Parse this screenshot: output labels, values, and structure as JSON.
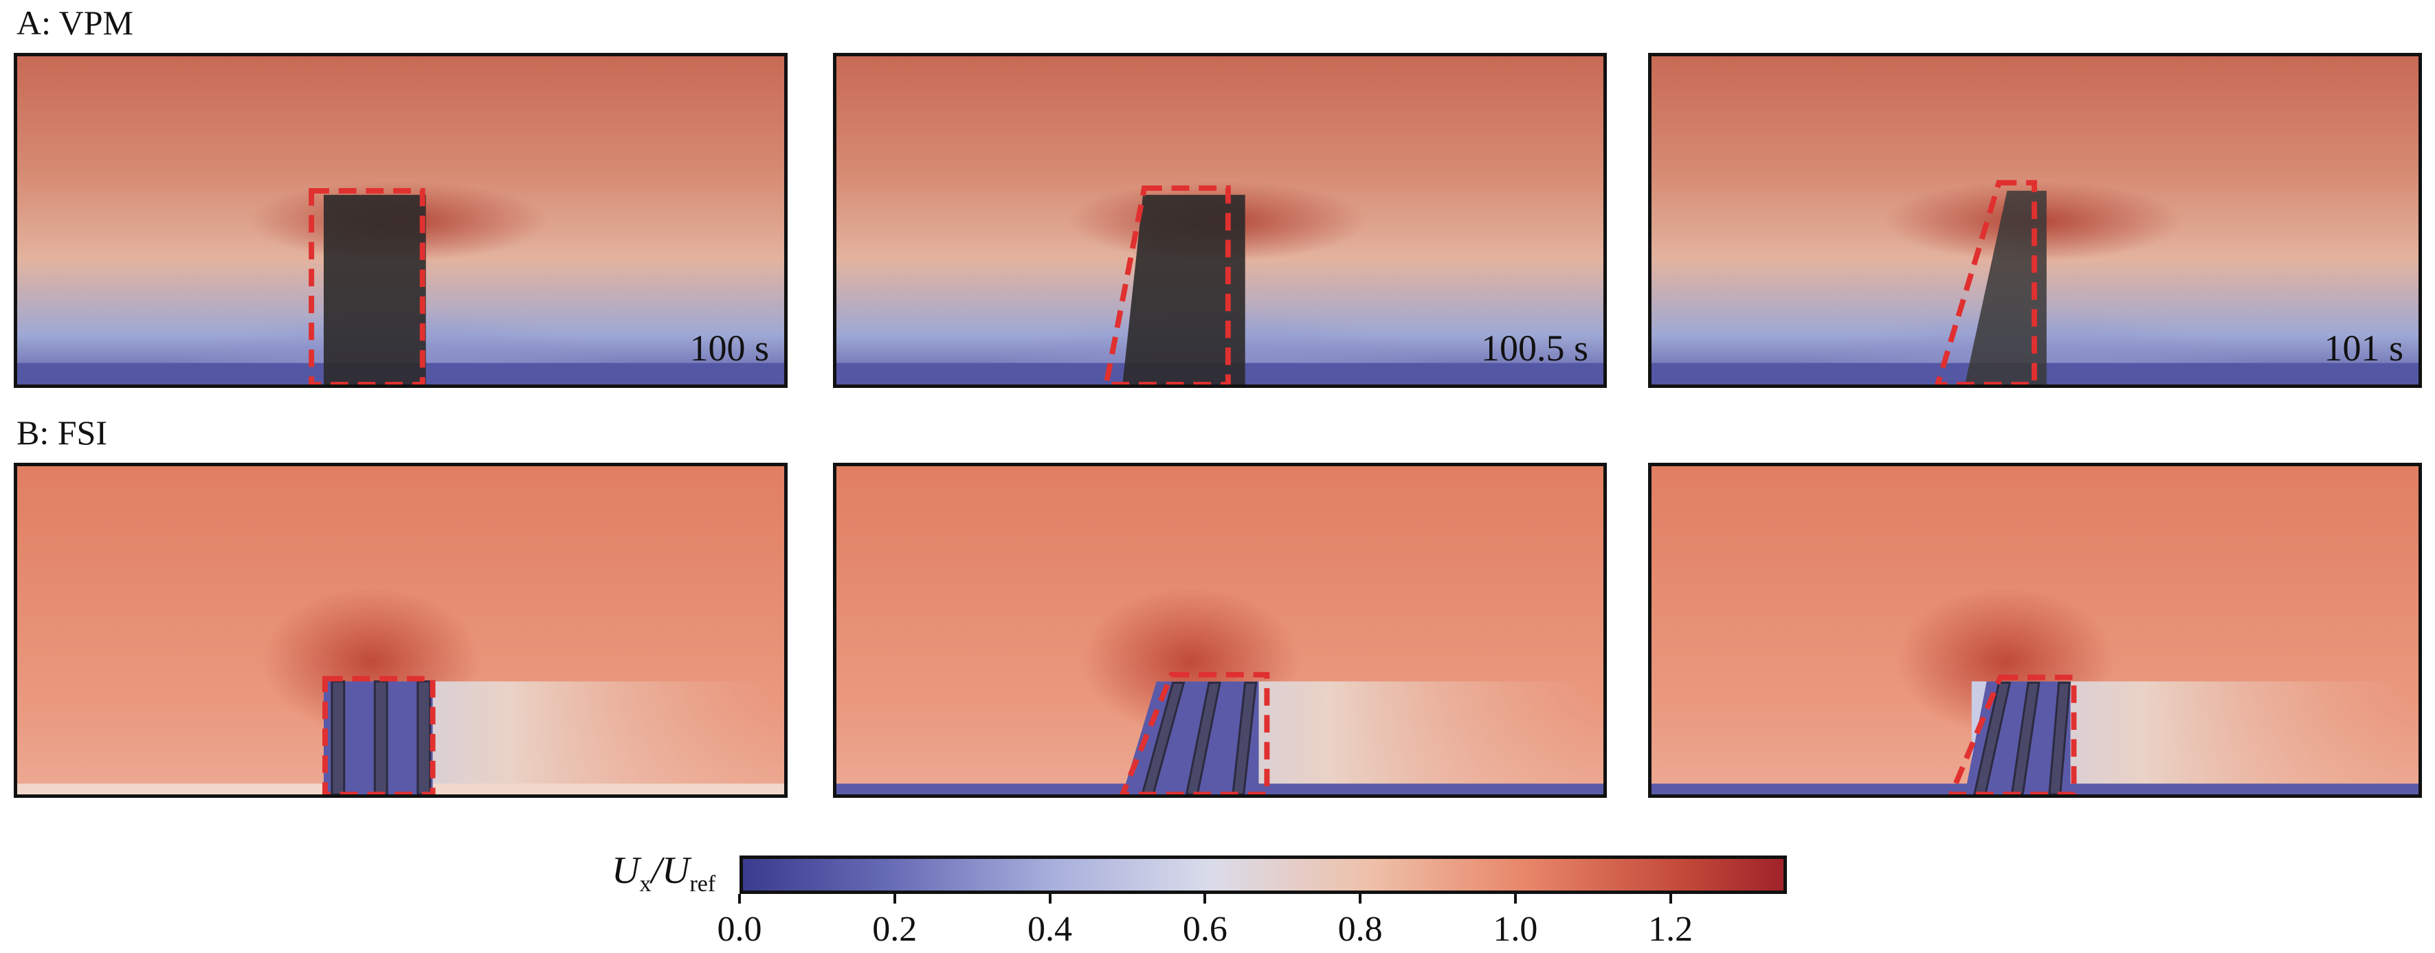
{
  "figure": {
    "row_a": {
      "label": "A: VPM",
      "panels": [
        {
          "time": "100 s",
          "lean": 0.0
        },
        {
          "time": "100.5 s",
          "lean": 0.5
        },
        {
          "time": "101 s",
          "lean": 1.0
        }
      ]
    },
    "row_b": {
      "label": "B: FSI",
      "panels": [
        {
          "time": "",
          "lean": 0.0
        },
        {
          "time": "",
          "lean": 0.5
        },
        {
          "time": "",
          "lean": 0.8
        }
      ]
    },
    "colorbar": {
      "title_main": "U",
      "title_sub1": "x",
      "title_sep": "/U",
      "title_sub2": "ref",
      "min": 0.0,
      "max": 1.35,
      "ticks": [
        "0.0",
        "0.2",
        "0.4",
        "0.6",
        "0.8",
        "1.0",
        "1.2"
      ],
      "tick_values": [
        0.0,
        0.2,
        0.4,
        0.6,
        0.8,
        1.0,
        1.2
      ]
    },
    "colors": {
      "low": "#3b3b8f",
      "mid": "#dcdcdc",
      "high": "#a0232a",
      "outline": "#e03030"
    }
  }
}
